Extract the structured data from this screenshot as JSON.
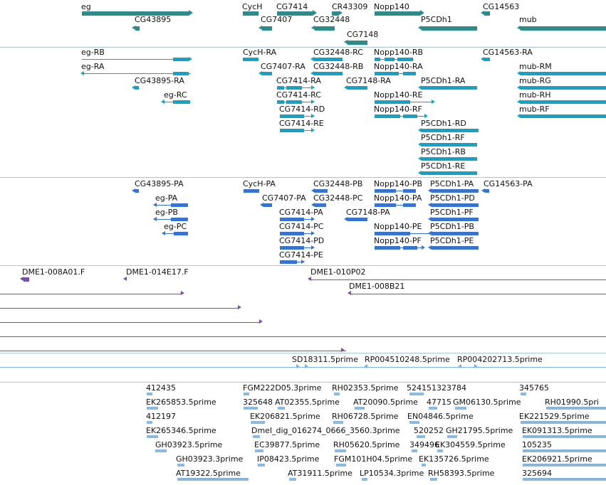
{
  "colors": {
    "genes": "#2e8b8b",
    "flybase_tx": "#15a3c5",
    "refseq_tx": "#3973d0",
    "bac": "#7a4fa8",
    "ests": "#7fb1dd",
    "separator": "#a7c8d3"
  },
  "tracks": {
    "genes": {
      "items": [
        {
          "label": "eg",
          "strand": "+"
        },
        {
          "label": "CycH",
          "strand": "+"
        },
        {
          "label": "CG7414",
          "strand": "+"
        },
        {
          "label": "CR43309",
          "strand": "+"
        },
        {
          "label": "Nopp140",
          "strand": "+"
        },
        {
          "label": "CG14563",
          "strand": "-"
        },
        {
          "label": "CG43895",
          "strand": "-"
        },
        {
          "label": "CG7407",
          "strand": "-"
        },
        {
          "label": "CG32448",
          "strand": "-"
        },
        {
          "label": "P5CDh1",
          "strand": "-"
        },
        {
          "label": "mub",
          "strand": "-"
        },
        {
          "label": "CG7148",
          "strand": "-"
        }
      ]
    },
    "flybase_transcripts": {
      "items": [
        {
          "label": "eg-RB"
        },
        {
          "label": "CycH-RA"
        },
        {
          "label": "CG32448-RC"
        },
        {
          "label": "Nopp140-RB"
        },
        {
          "label": "CG14563-RA"
        },
        {
          "label": "eg-RA"
        },
        {
          "label": "CG7407-RA"
        },
        {
          "label": "CG32448-RB"
        },
        {
          "label": "Nopp140-RA"
        },
        {
          "label": "mub-RM"
        },
        {
          "label": "CG43895-RA"
        },
        {
          "label": "CG7414-RA"
        },
        {
          "label": "CG7148-RA"
        },
        {
          "label": "P5CDh1-RA"
        },
        {
          "label": "mub-RG"
        },
        {
          "label": "eg-RC"
        },
        {
          "label": "CG7414-RC"
        },
        {
          "label": "Nopp140-RE"
        },
        {
          "label": "mub-RH"
        },
        {
          "label": "CG7414-RD"
        },
        {
          "label": "Nopp140-RF"
        },
        {
          "label": "mub-RF"
        },
        {
          "label": "CG7414-RE"
        },
        {
          "label": "P5CDh1-RD"
        },
        {
          "label": "P5CDh1-RF"
        },
        {
          "label": "P5CDh1-RB"
        },
        {
          "label": "P5CDh1-RE"
        }
      ]
    },
    "refseq_transcripts": {
      "items": [
        {
          "label": "CG43895-PA"
        },
        {
          "label": "CycH-PA"
        },
        {
          "label": "CG32448-PB"
        },
        {
          "label": "Nopp140-PB"
        },
        {
          "label": "P5CDh1-PA"
        },
        {
          "label": "CG14563-PA"
        },
        {
          "label": "eg-PA"
        },
        {
          "label": "CG7407-PA"
        },
        {
          "label": "CG32448-PC"
        },
        {
          "label": "Nopp140-PA"
        },
        {
          "label": "P5CDh1-PD"
        },
        {
          "label": "eg-PB"
        },
        {
          "label": "CG7414-PA"
        },
        {
          "label": "CG7148-PA"
        },
        {
          "label": "P5CDh1-PF"
        },
        {
          "label": "eg-PC"
        },
        {
          "label": "CG7414-PC"
        },
        {
          "label": "Nopp140-PE"
        },
        {
          "label": "P5CDh1-PB"
        },
        {
          "label": "CG7414-PD"
        },
        {
          "label": "Nopp140-PF"
        },
        {
          "label": "P5CDh1-PE"
        },
        {
          "label": "CG7414-PE"
        }
      ]
    },
    "bac_clones": {
      "items": [
        {
          "label": "DME1-008A01.F"
        },
        {
          "label": "DME1-014E17.F"
        },
        {
          "label": "DME1-010P02"
        },
        {
          "label": "DME1-008B21"
        }
      ]
    },
    "ests_a": {
      "items": [
        {
          "label": "SD18311.5prime"
        },
        {
          "label": "RP004510248.5prime"
        },
        {
          "label": "RP004202713.5prime"
        }
      ]
    },
    "ests_b": {
      "items": [
        {
          "label": "412435"
        },
        {
          "label": "FGM222D05.3prime"
        },
        {
          "label": "RH02353.5prime"
        },
        {
          "label": "524151323784"
        },
        {
          "label": "345765"
        },
        {
          "label": "EK265853.5prime"
        },
        {
          "label": "325648"
        },
        {
          "label": "AT02355.5prime"
        },
        {
          "label": "AT20090.5prime"
        },
        {
          "label": "47715"
        },
        {
          "label": "GM06130.5prime"
        },
        {
          "label": "RH01990.5pri"
        },
        {
          "label": "412197"
        },
        {
          "label": "EK206821.5prime"
        },
        {
          "label": "RH06728.5prime"
        },
        {
          "label": "EN04846.5prime"
        },
        {
          "label": "EK221529.5prime"
        },
        {
          "label": "EK265346.5prime"
        },
        {
          "label": "Dmel_dig_016274_0666_3560.3prime"
        },
        {
          "label": "520252"
        },
        {
          "label": "GH21795.5prime"
        },
        {
          "label": "EK091313.5prime"
        },
        {
          "label": "GH03923.5prime"
        },
        {
          "label": "EC39877.5prime"
        },
        {
          "label": "RH05620.5prime"
        },
        {
          "label": "349496"
        },
        {
          "label": "EK304559.5prime"
        },
        {
          "label": "105235"
        },
        {
          "label": "GH03923.3prime"
        },
        {
          "label": "IP08423.5prime"
        },
        {
          "label": "FGM101H04.5prime"
        },
        {
          "label": "EK135726.5prime"
        },
        {
          "label": "EK206921.5prime"
        },
        {
          "label": "AT19322.5prime"
        },
        {
          "label": "AT31911.5prime"
        },
        {
          "label": "LP10534.3prime"
        },
        {
          "label": "RH58393.5prime"
        },
        {
          "label": "325694"
        }
      ]
    }
  }
}
